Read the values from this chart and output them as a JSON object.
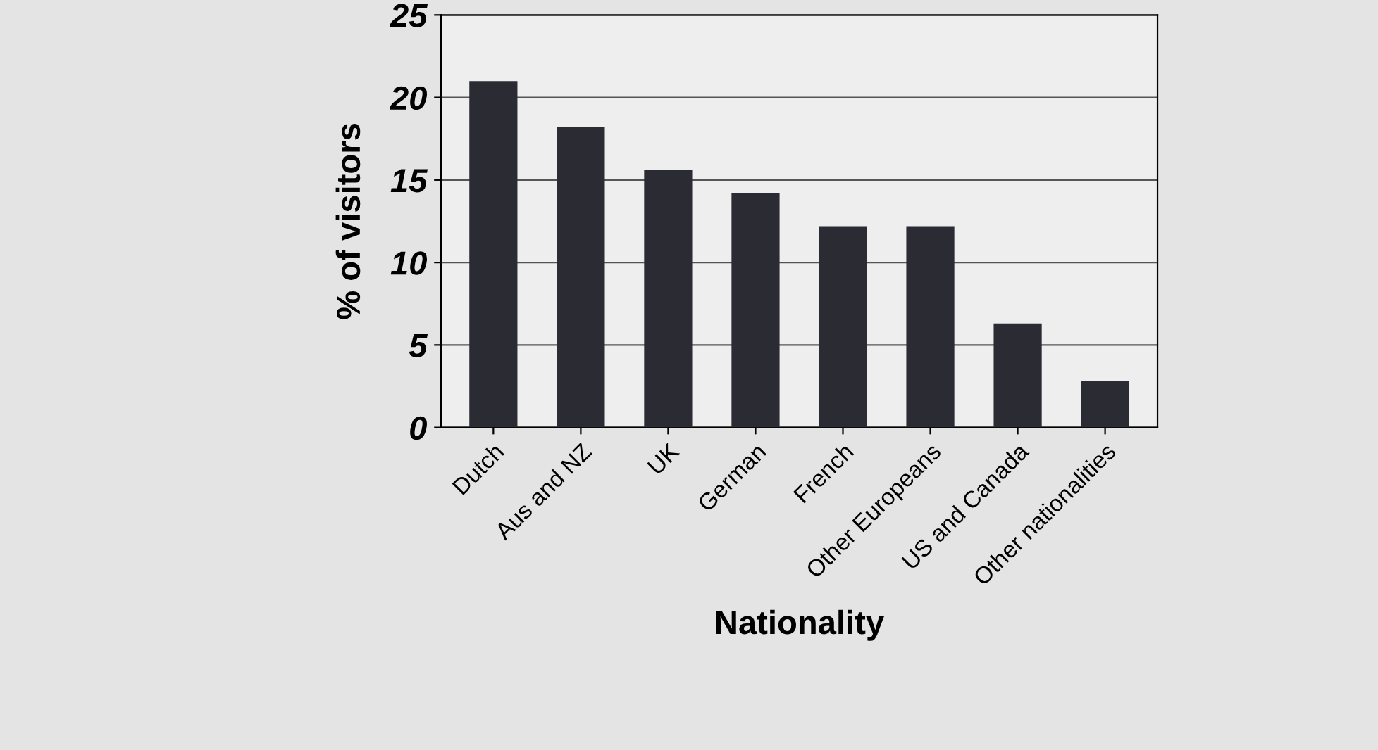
{
  "chart_data": {
    "type": "bar",
    "xlabel": "Nationality",
    "ylabel": "% of visitors",
    "categories": [
      "Dutch",
      "Aus and NZ",
      "UK",
      "German",
      "French",
      "Other Europeans",
      "US and Canada",
      "Other nationalities"
    ],
    "values": [
      21,
      18.2,
      15.6,
      14.2,
      12.2,
      12.2,
      6.3,
      2.8
    ],
    "color": "#2b2b33",
    "ylim": [
      0,
      25
    ],
    "yticks": [
      0,
      5,
      10,
      15,
      20,
      25
    ],
    "grid": "y"
  }
}
